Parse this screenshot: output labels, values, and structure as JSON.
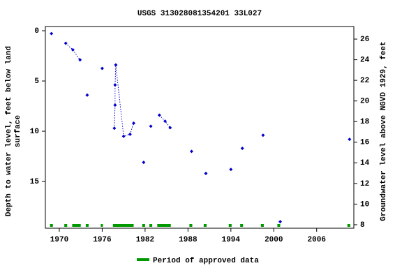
{
  "chart_data": {
    "type": "scatter",
    "title": "USGS 313028081354201 33L027",
    "ylabel": [
      "Depth to water level, feet below land",
      "surface"
    ],
    "y2label": "Groundwater level above NGVD 1929, feet",
    "xlim": [
      1968.05,
      2011.2
    ],
    "xticks": [
      1970,
      1976,
      1982,
      1988,
      1994,
      2000,
      2006
    ],
    "ylim": [
      -0.42,
      19.65
    ],
    "y_inverted": true,
    "yticks": [
      0,
      5,
      10,
      15
    ],
    "y2lim": [
      7.66,
      27.22
    ],
    "y2ticks": [
      8,
      10,
      12,
      14,
      16,
      18,
      20,
      22,
      24,
      26
    ],
    "series": [
      {
        "color": "#0000cc",
        "x": [
          1968.9,
          null,
          1970.9,
          1971.9,
          1972.9,
          null,
          1973.9,
          null,
          1976.0,
          null,
          1977.7,
          1977.8,
          1977.8,
          1977.9,
          1979.0,
          1979.9,
          1980.4,
          null,
          1981.8,
          null,
          1982.8,
          null,
          1984.0,
          1984.8,
          1985.5,
          null,
          1988.5,
          null,
          1990.5,
          null,
          1994.0,
          null,
          1995.6,
          null,
          1998.5,
          null,
          2000.9,
          null,
          2010.6
        ],
        "values": [
          0.28,
          null,
          1.25,
          1.9,
          2.9,
          null,
          6.4,
          null,
          3.75,
          null,
          9.7,
          7.4,
          5.4,
          3.4,
          10.5,
          10.3,
          9.2,
          null,
          13.1,
          null,
          9.5,
          null,
          8.4,
          9.0,
          9.65,
          null,
          12.0,
          null,
          14.2,
          null,
          13.8,
          null,
          11.7,
          null,
          10.4,
          null,
          19.0,
          null,
          10.8
        ]
      }
    ],
    "approved_periods": {
      "name": "Period of approved data",
      "color": "#009900",
      "ranges": [
        [
          1968.7,
          1969.1
        ],
        [
          1970.7,
          1971.1
        ],
        [
          1971.8,
          1973.0
        ],
        [
          1973.7,
          1974.1
        ],
        [
          1975.8,
          1976.1
        ],
        [
          1977.5,
          1980.4
        ],
        [
          1981.6,
          1982.0
        ],
        [
          1982.6,
          1983.0
        ],
        [
          1983.7,
          1985.6
        ],
        [
          1988.2,
          1988.6
        ],
        [
          1990.2,
          1990.6
        ],
        [
          1993.7,
          1994.1
        ],
        [
          1995.3,
          1995.7
        ],
        [
          1998.2,
          1998.6
        ],
        [
          2000.5,
          2000.9
        ],
        [
          2010.3,
          2010.7
        ]
      ]
    }
  }
}
